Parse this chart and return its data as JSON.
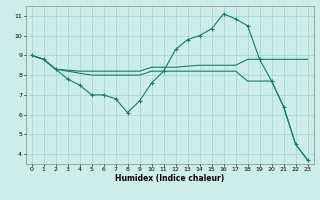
{
  "xlabel": "Humidex (Indice chaleur)",
  "ylabel": "",
  "background_color": "#cceee8",
  "grid_color": "#aad8d0",
  "line_color": "#1a7a6e",
  "x_ticks": [
    0,
    1,
    2,
    3,
    4,
    5,
    6,
    7,
    8,
    9,
    10,
    11,
    12,
    13,
    14,
    15,
    16,
    17,
    18,
    19,
    20,
    21,
    22,
    23
  ],
  "y_ticks": [
    4,
    5,
    6,
    7,
    8,
    9,
    10,
    11
  ],
  "ylim": [
    3.5,
    11.5
  ],
  "xlim": [
    -0.5,
    23.5
  ],
  "series": [
    {
      "x": [
        0,
        1,
        2,
        3,
        4,
        5,
        6,
        7,
        8,
        9,
        10,
        11,
        12,
        13,
        14,
        15,
        16,
        17,
        18,
        19,
        20,
        21,
        22,
        23
      ],
      "y": [
        9.0,
        8.8,
        8.3,
        8.25,
        8.2,
        8.2,
        8.2,
        8.2,
        8.2,
        8.2,
        8.4,
        8.4,
        8.4,
        8.45,
        8.5,
        8.5,
        8.5,
        8.5,
        8.8,
        8.8,
        8.8,
        8.8,
        8.8,
        8.8
      ],
      "has_markers": false
    },
    {
      "x": [
        0,
        1,
        2,
        3,
        4,
        5,
        6,
        7,
        8,
        9,
        10,
        11,
        12,
        13,
        14,
        15,
        16,
        17,
        18,
        19,
        20,
        21,
        22,
        23
      ],
      "y": [
        9.0,
        8.8,
        8.3,
        8.2,
        8.1,
        8.0,
        8.0,
        8.0,
        8.0,
        8.0,
        8.2,
        8.2,
        8.2,
        8.2,
        8.2,
        8.2,
        8.2,
        8.2,
        7.7,
        7.7,
        7.7,
        6.4,
        4.5,
        3.7
      ],
      "has_markers": false
    },
    {
      "x": [
        0,
        1,
        2,
        3,
        4,
        5,
        6,
        7,
        8,
        9,
        10,
        11,
        12,
        13,
        14,
        15,
        16,
        17,
        18,
        19,
        20,
        21,
        22,
        23
      ],
      "y": [
        9.0,
        8.8,
        8.3,
        7.8,
        7.5,
        7.0,
        7.0,
        6.8,
        6.1,
        6.7,
        7.6,
        8.2,
        9.3,
        9.8,
        10.0,
        10.35,
        11.1,
        10.85,
        10.5,
        8.8,
        7.7,
        6.4,
        4.5,
        3.7
      ],
      "has_markers": true
    }
  ]
}
